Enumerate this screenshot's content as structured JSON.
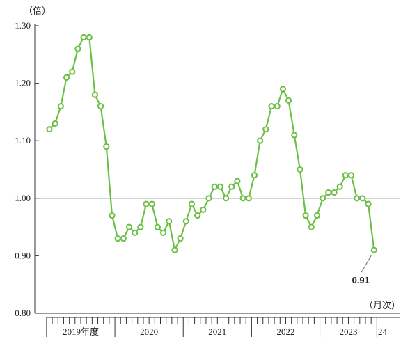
{
  "chart_data": {
    "type": "line",
    "ylabel": "（倍）",
    "xlabel": "（月次）",
    "ylim": [
      0.8,
      1.3
    ],
    "yticks": [
      "1.30",
      "1.20",
      "1.10",
      "1.00",
      "0.90",
      "0.80"
    ],
    "reference_line": 1.0,
    "year_labels": [
      "2019年度",
      "2020",
      "2021",
      "2022",
      "2023",
      "24"
    ],
    "series_color": "#6cbf45",
    "series": [
      {
        "values": [
          1.12,
          1.13,
          1.16,
          1.21,
          1.22,
          1.26,
          1.28,
          1.28,
          1.18,
          1.16,
          1.09,
          0.97,
          0.93,
          0.93,
          0.95,
          0.94,
          0.95,
          0.99,
          0.99,
          0.95,
          0.94,
          0.96,
          0.91,
          0.93,
          0.96,
          0.99,
          0.97,
          0.98,
          1.0,
          1.02,
          1.02,
          1.0,
          1.02,
          1.03,
          1.0,
          1.0,
          1.04,
          1.1,
          1.12,
          1.16,
          1.16,
          1.19,
          1.17,
          1.11,
          1.05,
          0.97,
          0.95,
          0.97,
          1.0,
          1.01,
          1.01,
          1.02,
          1.04,
          1.04,
          1.0,
          1.0,
          0.99,
          0.91
        ]
      }
    ],
    "annotation": {
      "text": "0.91"
    }
  }
}
